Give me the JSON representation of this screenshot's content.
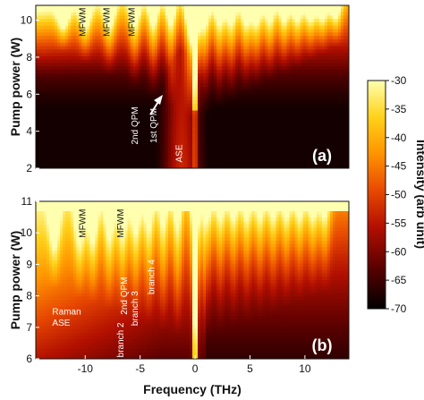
{
  "chart_data": [
    {
      "type": "heatmap",
      "panel_label": "(a)",
      "ylabel": "Pump power (W)",
      "xlabel": "",
      "xlim": [
        -14.5,
        14
      ],
      "ylim": [
        2,
        10.8
      ],
      "yticks": [
        2,
        4,
        6,
        8,
        10
      ],
      "xticks": [],
      "peaks_thz": [
        -12,
        -10,
        -7.8,
        -5.5,
        -3.8,
        -2.2,
        -0.5,
        0,
        0.9,
        2.2,
        3.3,
        4.6,
        5.6,
        6.8,
        8.1,
        9.3,
        10.5,
        11.6,
        12.8
      ],
      "annotations": [
        {
          "text": "MFWM",
          "x": -10,
          "y": 9.9
        },
        {
          "text": "MFWM",
          "x": -7.8,
          "y": 9.9
        },
        {
          "text": "MFWM",
          "x": -5.5,
          "y": 9.9
        },
        {
          "text": "2nd QPM",
          "x": -5.2,
          "y": 4.3
        },
        {
          "text": "1st QPM",
          "x": -3.5,
          "y": 4.3
        },
        {
          "text": "ASE",
          "x": -1.2,
          "y": 2.8
        }
      ]
    },
    {
      "type": "heatmap",
      "panel_label": "(b)",
      "ylabel": "Pump power (W)",
      "xlabel": "Frequency (THz)",
      "xlim": [
        -14.5,
        14
      ],
      "ylim": [
        6,
        11
      ],
      "yticks": [
        6,
        7,
        8,
        9,
        10,
        11
      ],
      "xticks": [
        -10,
        -5,
        0,
        5,
        10
      ],
      "peaks_thz": [
        -12.8,
        -10.5,
        -9.3,
        -7.8,
        -6.6,
        -5.4,
        -4.2,
        -2.9,
        -1.6,
        0,
        1.1,
        2.3,
        3.5,
        4.7,
        5.9,
        7.1,
        8.3,
        9.5,
        10.7,
        11.8
      ],
      "annotations": [
        {
          "text": "MFWM",
          "x": -10,
          "y": 10.3
        },
        {
          "text": "MFWM",
          "x": -6.5,
          "y": 10.3
        },
        {
          "text": "2nd QPM",
          "x": -6.2,
          "y": 8.0
        },
        {
          "text": "branch 2",
          "x": -6.5,
          "y": 6.6
        },
        {
          "text": "branch 3",
          "x": -5.2,
          "y": 7.6
        },
        {
          "text": "branch 4",
          "x": -3.7,
          "y": 8.6
        },
        {
          "text": "Raman",
          "x": -13,
          "y": 7.4
        },
        {
          "text": "ASE",
          "x": -13,
          "y": 7.05
        }
      ]
    }
  ],
  "colorbar": {
    "label": "Intensity (arb unit)",
    "min": -70,
    "max": -30,
    "ticks": [
      "-30",
      "-35",
      "-40",
      "-45",
      "-50",
      "-55",
      "-60",
      "-65",
      "-70"
    ],
    "colormap": "hot",
    "colors": [
      "#000000",
      "#5a0000",
      "#b31000",
      "#e84a00",
      "#ff9400",
      "#ffd21a",
      "#ffffb0"
    ]
  }
}
